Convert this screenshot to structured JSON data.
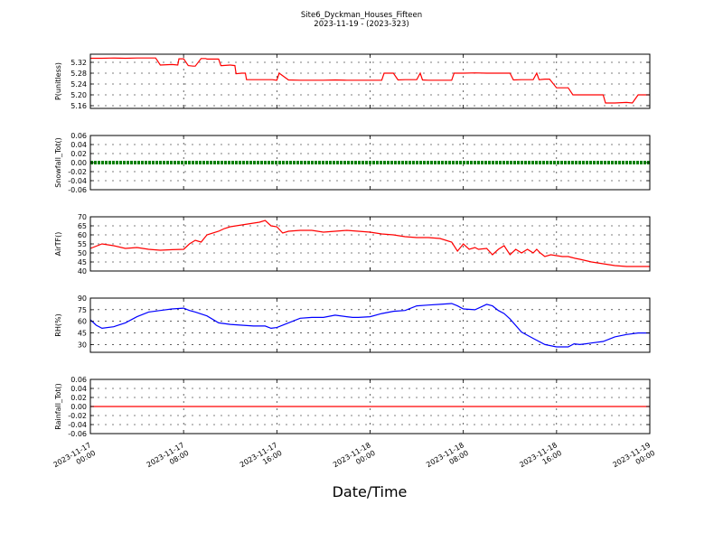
{
  "figure": {
    "title": "Site6_Dyckman_Houses_Fifteen",
    "subtitle": "2023-11-19 - (2023-323)",
    "xlabel": "Date/Time",
    "xticks": [
      {
        "x": 0,
        "line1": "2023-11-17",
        "line2": "00:00"
      },
      {
        "x": 8,
        "line1": "2023-11-17",
        "line2": "08:00"
      },
      {
        "x": 16,
        "line1": "2023-11-17",
        "line2": "16:00"
      },
      {
        "x": 24,
        "line1": "2023-11-18",
        "line2": "00:00"
      },
      {
        "x": 32,
        "line1": "2023-11-18",
        "line2": "08:00"
      },
      {
        "x": 40,
        "line1": "2023-11-18",
        "line2": "16:00"
      },
      {
        "x": 48,
        "line1": "2023-11-19",
        "line2": "00:00"
      }
    ]
  },
  "chart_data": [
    {
      "type": "line",
      "ylabel": "P(unitless)",
      "color": "#ff0000",
      "ylim": [
        5.15,
        5.35
      ],
      "yticks": [
        "5.16",
        "5.20",
        "5.24",
        "5.28",
        "5.32"
      ],
      "grid": true,
      "x": [
        0,
        1,
        2,
        3,
        4,
        5,
        5.6,
        6,
        7,
        7.5,
        7.6,
        8,
        8.4,
        8.8,
        9,
        9.5,
        9.9,
        10,
        11,
        11.2,
        11.3,
        12,
        12.4,
        12.5,
        13,
        13.3,
        13.4,
        14,
        15,
        15.6,
        16,
        16.2,
        17,
        18,
        19,
        20,
        21,
        22,
        23,
        24,
        25,
        25.2,
        26,
        26.4,
        27,
        28,
        28.3,
        28.5,
        29,
        30,
        31,
        31.2,
        32,
        33,
        34,
        35,
        36,
        36.3,
        37,
        38,
        38.3,
        38.5,
        39,
        39.4,
        40,
        40.2,
        41,
        41.4,
        42,
        43,
        44,
        44.2,
        45,
        46,
        46.5,
        47,
        48
      ],
      "values": [
        5.335,
        5.335,
        5.336,
        5.335,
        5.336,
        5.336,
        5.336,
        5.31,
        5.312,
        5.31,
        5.333,
        5.333,
        5.308,
        5.306,
        5.306,
        5.334,
        5.334,
        5.332,
        5.332,
        5.308,
        5.308,
        5.31,
        5.308,
        5.278,
        5.28,
        5.28,
        5.256,
        5.256,
        5.256,
        5.256,
        5.254,
        5.28,
        5.255,
        5.254,
        5.254,
        5.254,
        5.255,
        5.254,
        5.254,
        5.254,
        5.254,
        5.28,
        5.28,
        5.255,
        5.256,
        5.256,
        5.28,
        5.255,
        5.254,
        5.254,
        5.254,
        5.28,
        5.28,
        5.281,
        5.28,
        5.28,
        5.28,
        5.255,
        5.256,
        5.256,
        5.28,
        5.256,
        5.258,
        5.258,
        5.226,
        5.226,
        5.226,
        5.2,
        5.2,
        5.2,
        5.2,
        5.17,
        5.17,
        5.172,
        5.17,
        5.2,
        5.2
      ]
    },
    {
      "type": "line",
      "ylabel": "Snowfall_Tot()",
      "color": "#008000",
      "ylim": [
        -0.06,
        0.06
      ],
      "yticks": [
        "-0.06",
        "-0.04",
        "-0.02",
        "0.00",
        "0.02",
        "0.04",
        "0.06"
      ],
      "grid": true,
      "x": [
        0,
        48
      ],
      "values": [
        0,
        0
      ]
    },
    {
      "type": "line",
      "ylabel": "AirTF()",
      "color": "#ff0000",
      "ylim": [
        40,
        70
      ],
      "yticks": [
        "40",
        "45",
        "50",
        "55",
        "60",
        "65",
        "70"
      ],
      "grid": true,
      "x": [
        0,
        1,
        2,
        3,
        4,
        5,
        6,
        7,
        8,
        8.5,
        9,
        9.5,
        10,
        11,
        11.5,
        12,
        13,
        14,
        14.5,
        15,
        15.5,
        16,
        16.5,
        17,
        18,
        19,
        20,
        21,
        22,
        23,
        24,
        25,
        26,
        27,
        28,
        29,
        30,
        31,
        31.5,
        32,
        32.5,
        33,
        33.3,
        34,
        34.5,
        35,
        35.5,
        36,
        36.5,
        37,
        37.5,
        38,
        38.3,
        38.6,
        39,
        39.5,
        40,
        40.5,
        41,
        41.3,
        41.6,
        42,
        43,
        44,
        45,
        46,
        47,
        48
      ],
      "values": [
        52.5,
        55,
        54,
        52.5,
        53,
        52,
        51.5,
        51.8,
        52,
        55,
        57,
        56,
        60,
        62,
        63.5,
        64.5,
        65.5,
        66.5,
        67,
        68,
        65,
        64.5,
        61,
        62,
        62.5,
        62.5,
        61.5,
        62,
        62.5,
        62,
        61.5,
        60.5,
        60,
        59,
        58.5,
        58.5,
        58,
        56,
        51,
        55,
        52,
        53,
        52,
        52.5,
        49,
        52,
        54,
        49,
        52,
        50,
        52,
        50,
        52,
        50,
        48,
        49,
        48.5,
        48,
        48,
        47.5,
        47,
        46.5,
        45,
        44,
        43,
        42.5,
        42.5,
        42.5
      ]
    },
    {
      "type": "line",
      "ylabel": "RH(%)",
      "color": "#0000ff",
      "ylim": [
        20,
        90
      ],
      "yticks": [
        "30",
        "45",
        "60",
        "75",
        "90"
      ],
      "grid": true,
      "x": [
        0,
        0.5,
        1,
        2,
        3,
        4,
        5,
        6,
        7,
        8,
        8.5,
        9,
        10,
        11,
        12,
        13,
        14,
        15,
        15.5,
        16,
        17,
        18,
        19,
        20,
        21,
        22,
        22.5,
        23,
        24,
        25,
        26,
        27,
        28,
        29,
        30,
        31,
        31.5,
        32,
        33,
        34,
        34.5,
        35,
        35.5,
        36,
        37,
        38,
        39,
        40,
        40.5,
        41,
        41.5,
        42,
        42.5,
        43,
        44,
        45,
        46,
        47,
        48
      ],
      "values": [
        62,
        55,
        51,
        53,
        58,
        66,
        72,
        74,
        76,
        77,
        74,
        72,
        67,
        58,
        56,
        55,
        54,
        54,
        51,
        52,
        58,
        64,
        65,
        65,
        68,
        66,
        65,
        65,
        66,
        70,
        73,
        74,
        80,
        81,
        82,
        83,
        80,
        76,
        75,
        82,
        80,
        74,
        70,
        63,
        46,
        38,
        30,
        27,
        27,
        27,
        31,
        30,
        31,
        32,
        34,
        40,
        43,
        45,
        45
      ]
    },
    {
      "type": "line",
      "ylabel": "Rainfall_Tot()",
      "color": "#ff0000",
      "ylim": [
        -0.06,
        0.06
      ],
      "yticks": [
        "-0.06",
        "-0.04",
        "-0.02",
        "0.00",
        "0.02",
        "0.04",
        "0.06"
      ],
      "grid": true,
      "x": [
        0,
        48
      ],
      "values": [
        0,
        0
      ]
    }
  ]
}
